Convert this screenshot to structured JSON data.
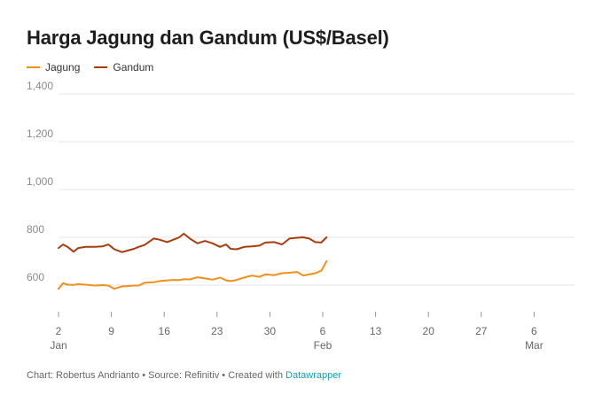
{
  "title": "Harga Jagung dan Gandum (US$/Basel)",
  "footer": {
    "credit": "Chart: Robertus Andrianto • Source: Refinitiv • Created with ",
    "tool": "Datawrapper"
  },
  "chart_data": {
    "type": "line",
    "title": "Harga Jagung dan Gandum (US$/Basel)",
    "legend_placement": "top-left",
    "grid": true,
    "ylim": [
      500,
      1430
    ],
    "yticks": [
      600,
      800,
      1000,
      1200,
      1400
    ],
    "ytick_labels": [
      "600",
      "800",
      "1,000",
      "1,200",
      "1,400"
    ],
    "x_range": [
      1,
      36.5
    ],
    "x_ticks": [
      {
        "day": 1,
        "label": "2",
        "sub": "Jan"
      },
      {
        "day": 8,
        "label": "9",
        "sub": ""
      },
      {
        "day": 15,
        "label": "16",
        "sub": ""
      },
      {
        "day": 22,
        "label": "23",
        "sub": ""
      },
      {
        "day": 29,
        "label": "30",
        "sub": ""
      },
      {
        "day": 36,
        "label": "6",
        "sub": "Feb"
      },
      {
        "day": 43,
        "label": "13",
        "sub": ""
      },
      {
        "day": 50,
        "label": "20",
        "sub": ""
      },
      {
        "day": 57,
        "label": "27",
        "sub": ""
      },
      {
        "day": 64,
        "label": "6",
        "sub": "Mar"
      }
    ],
    "series": [
      {
        "name": "Jagung",
        "color": "#f18f1c",
        "x": [
          1,
          1.6,
          2.2,
          3,
          3.6,
          4.6,
          5.8,
          6.8,
          7.6,
          8.4,
          9.4,
          10.2,
          11,
          11.6,
          12.4,
          13.6,
          14.4,
          15.4,
          16.2,
          17,
          17.6,
          18.4,
          19.4,
          20.4,
          21.4,
          22.4,
          23.2,
          23.8,
          24.6,
          25.6,
          26.6,
          27.6,
          28.4,
          29.6,
          30.6,
          31.6,
          32.6,
          33.4,
          34.2,
          35,
          35.8,
          36.5
        ],
        "y": [
          585,
          608,
          602,
          601,
          604,
          602,
          598,
          600,
          598,
          585,
          595,
          596,
          598,
          598,
          610,
          612,
          617,
          620,
          622,
          621,
          625,
          624,
          633,
          628,
          623,
          632,
          620,
          617,
          622,
          632,
          640,
          635,
          645,
          642,
          650,
          652,
          655,
          640,
          645,
          650,
          660,
          700
        ]
      },
      {
        "name": "Gandum",
        "color": "#a83d0c",
        "x": [
          1,
          1.6,
          2.2,
          3,
          3.6,
          4.6,
          5.8,
          6.8,
          7.6,
          8.4,
          9.4,
          10.2,
          11,
          11.6,
          12.4,
          13.6,
          14.4,
          15.4,
          16.2,
          17,
          17.6,
          18.4,
          19.4,
          20.4,
          21.4,
          22.4,
          23.2,
          23.8,
          24.6,
          25.6,
          26.6,
          27.6,
          28.4,
          29.6,
          30.6,
          31.6,
          32.6,
          33.4,
          34.2,
          35,
          35.8,
          36.5
        ],
        "y": [
          755,
          770,
          760,
          740,
          755,
          760,
          760,
          762,
          770,
          750,
          738,
          745,
          752,
          760,
          768,
          795,
          790,
          780,
          790,
          800,
          815,
          795,
          775,
          785,
          775,
          760,
          770,
          752,
          750,
          760,
          762,
          765,
          778,
          780,
          770,
          795,
          798,
          800,
          795,
          780,
          778,
          800
        ]
      }
    ]
  }
}
